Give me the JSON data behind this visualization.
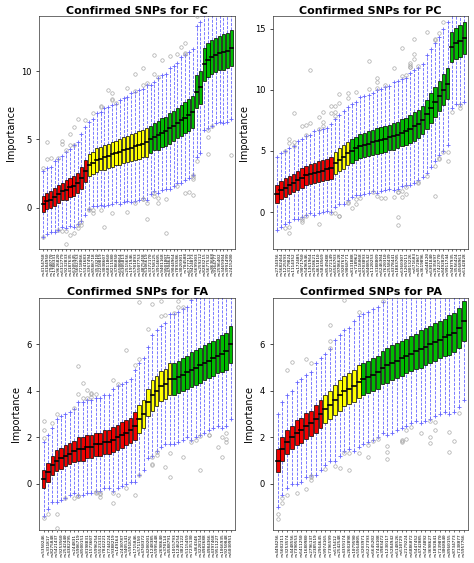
{
  "subplots": [
    {
      "title": "Confirmed SNPs for FC",
      "ylabel": "Importance",
      "ylim": [
        -3,
        14
      ],
      "yticks": [
        0,
        5,
        10
      ],
      "n_red": 12,
      "n_yellow": 16,
      "n_green": 22,
      "red_medians": [
        0.3,
        0.5,
        0.6,
        0.8,
        1.0,
        1.2,
        1.3,
        1.5,
        1.6,
        1.8,
        2.2,
        2.7
      ],
      "red_iqr": [
        1.2,
        1.2,
        1.2,
        1.3,
        1.3,
        1.3,
        1.4,
        1.4,
        1.5,
        1.5,
        1.6,
        1.6
      ],
      "yellow_medians": [
        3.1,
        3.3,
        3.5,
        3.6,
        3.7,
        3.8,
        3.9,
        4.0,
        4.1,
        4.2,
        4.3,
        4.4,
        4.5,
        4.6,
        4.7,
        4.8
      ],
      "yellow_iqr": [
        1.6,
        1.6,
        1.7,
        1.7,
        1.8,
        1.8,
        1.8,
        1.8,
        1.9,
        1.9,
        1.9,
        2.0,
        2.0,
        2.0,
        2.0,
        2.1
      ],
      "green_medians": [
        5.0,
        5.2,
        5.3,
        5.5,
        5.6,
        5.8,
        6.0,
        6.2,
        6.4,
        6.6,
        6.8,
        7.0,
        8.5,
        8.8,
        10.5,
        10.8,
        11.0,
        11.2,
        11.3,
        11.4,
        11.5,
        11.7
      ],
      "green_iqr": [
        2.0,
        2.0,
        2.1,
        2.1,
        2.1,
        2.2,
        2.2,
        2.2,
        2.3,
        2.3,
        2.3,
        2.3,
        2.4,
        2.4,
        2.4,
        2.5,
        2.5,
        2.5,
        2.5,
        2.6,
        2.6,
        2.6
      ]
    },
    {
      "title": "Confirmed SNPs for PC",
      "ylabel": "Importance",
      "ylim": [
        -3,
        16
      ],
      "yticks": [
        0,
        5,
        10,
        15
      ],
      "n_red": 14,
      "n_yellow": 4,
      "n_green": 28,
      "red_medians": [
        1.5,
        1.8,
        2.0,
        2.2,
        2.4,
        2.6,
        2.8,
        3.0,
        3.1,
        3.2,
        3.3,
        3.4,
        3.5,
        3.6
      ],
      "red_iqr": [
        1.5,
        1.5,
        1.5,
        1.5,
        1.5,
        1.6,
        1.6,
        1.6,
        1.6,
        1.7,
        1.7,
        1.7,
        1.7,
        1.8
      ],
      "yellow_medians": [
        4.0,
        4.3,
        4.5,
        4.8
      ],
      "yellow_iqr": [
        1.8,
        1.8,
        1.9,
        1.9
      ],
      "green_medians": [
        5.0,
        5.2,
        5.4,
        5.5,
        5.6,
        5.7,
        5.8,
        5.9,
        6.0,
        6.1,
        6.2,
        6.3,
        6.5,
        6.6,
        6.8,
        7.0,
        7.2,
        7.5,
        8.0,
        8.5,
        9.0,
        9.5,
        10.0,
        10.5,
        13.5,
        13.8,
        14.0,
        14.2
      ],
      "green_iqr": [
        1.9,
        1.9,
        2.0,
        2.0,
        2.0,
        2.0,
        2.1,
        2.1,
        2.1,
        2.1,
        2.2,
        2.2,
        2.2,
        2.2,
        2.3,
        2.3,
        2.3,
        2.3,
        2.4,
        2.4,
        2.4,
        2.4,
        2.5,
        2.5,
        2.5,
        2.5,
        2.6,
        2.6
      ]
    },
    {
      "title": "Confirmed SNPs for FA",
      "ylabel": "Importance",
      "ylim": [
        -2,
        8
      ],
      "yticks": [
        0,
        2,
        4,
        6
      ],
      "n_red": 22,
      "n_yellow": 8,
      "n_green": 14,
      "red_medians": [
        0.2,
        0.5,
        0.8,
        1.0,
        1.1,
        1.2,
        1.3,
        1.4,
        1.5,
        1.5,
        1.6,
        1.6,
        1.7,
        1.7,
        1.8,
        1.8,
        1.9,
        2.0,
        2.1,
        2.2,
        2.3,
        2.5
      ],
      "red_iqr": [
        0.8,
        0.8,
        0.8,
        0.9,
        0.9,
        0.9,
        0.9,
        0.9,
        1.0,
        1.0,
        1.0,
        1.0,
        1.0,
        1.0,
        1.0,
        1.0,
        1.1,
        1.1,
        1.1,
        1.1,
        1.1,
        1.2
      ],
      "yellow_medians": [
        2.8,
        3.0,
        3.5,
        3.8,
        4.0,
        4.2,
        4.3,
        4.5
      ],
      "yellow_iqr": [
        1.2,
        1.2,
        1.2,
        1.3,
        1.3,
        1.3,
        1.3,
        1.4
      ],
      "green_medians": [
        4.5,
        4.6,
        4.7,
        4.8,
        4.9,
        5.0,
        5.1,
        5.2,
        5.3,
        5.4,
        5.5,
        5.6,
        5.7,
        6.0
      ],
      "green_iqr": [
        1.4,
        1.4,
        1.4,
        1.4,
        1.5,
        1.5,
        1.5,
        1.5,
        1.5,
        1.5,
        1.5,
        1.6,
        1.6,
        1.6
      ]
    },
    {
      "title": "Confirmed SNPs for PA",
      "ylabel": "Importance",
      "ylim": [
        -2,
        8
      ],
      "yticks": [
        0,
        2,
        4,
        6
      ],
      "n_red": 10,
      "n_yellow": 8,
      "n_green": 22,
      "red_medians": [
        1.0,
        1.5,
        1.8,
        2.0,
        2.2,
        2.3,
        2.5,
        2.6,
        2.8,
        3.0
      ],
      "red_iqr": [
        1.0,
        1.0,
        1.0,
        1.0,
        1.1,
        1.1,
        1.1,
        1.1,
        1.2,
        1.2
      ],
      "yellow_medians": [
        3.2,
        3.4,
        3.6,
        3.8,
        4.0,
        4.1,
        4.2,
        4.4
      ],
      "yellow_iqr": [
        1.2,
        1.2,
        1.3,
        1.3,
        1.3,
        1.3,
        1.4,
        1.4
      ],
      "green_medians": [
        4.5,
        4.6,
        4.7,
        4.8,
        5.0,
        5.1,
        5.2,
        5.3,
        5.4,
        5.5,
        5.6,
        5.7,
        5.8,
        5.9,
        6.0,
        6.1,
        6.2,
        6.3,
        6.4,
        6.5,
        6.7,
        7.0
      ],
      "green_iqr": [
        1.4,
        1.4,
        1.4,
        1.4,
        1.4,
        1.5,
        1.5,
        1.5,
        1.5,
        1.5,
        1.5,
        1.5,
        1.6,
        1.6,
        1.6,
        1.6,
        1.6,
        1.6,
        1.7,
        1.7,
        1.7,
        1.7
      ]
    }
  ],
  "colors": {
    "red": "#EE0000",
    "yellow": "#FFFF00",
    "green": "#00BB00",
    "median_line": "#000000",
    "whisker_color": "#6666FF",
    "outlier_color": "#AAAAAA",
    "box_edge": "#000000"
  },
  "background_color": "#FFFFFF",
  "title_fontsize": 8,
  "label_fontsize": 7,
  "tick_fontsize": 6
}
